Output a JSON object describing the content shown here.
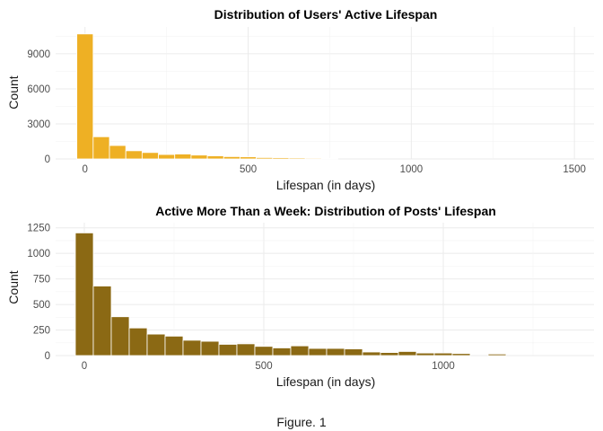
{
  "chart_data": [
    {
      "type": "bar",
      "title": "Distribution of Users' Active Lifespan",
      "xlabel": "Lifespan (in days)",
      "ylabel": "Count",
      "bin_width_days": 50,
      "bin_centers": [
        0,
        50,
        100,
        150,
        200,
        250,
        300,
        350,
        400,
        450,
        500,
        550,
        600,
        650,
        700,
        750
      ],
      "values": [
        10700,
        1900,
        1150,
        700,
        550,
        380,
        420,
        330,
        260,
        200,
        180,
        120,
        110,
        90,
        70,
        60
      ],
      "xlim": [
        -90,
        1560
      ],
      "ylim": [
        0,
        11300
      ],
      "x_ticks": [
        "0",
        "500",
        "1000",
        "1500"
      ],
      "y_ticks": [
        "0",
        "3000",
        "6000",
        "9000"
      ],
      "x_tick_values": [
        0,
        500,
        1000,
        1500
      ],
      "y_tick_values": [
        0,
        3000,
        6000,
        9000
      ],
      "color": "#EEB024",
      "grid": true
    },
    {
      "type": "bar",
      "title": "Active More Than a Week: Distribution of Posts' Lifespan",
      "xlabel": "Lifespan (in days)",
      "ylabel": "Count",
      "bin_width_days": 50,
      "bin_centers": [
        0,
        50,
        100,
        150,
        200,
        250,
        300,
        350,
        400,
        450,
        500,
        550,
        600,
        650,
        700,
        750,
        800,
        850,
        900,
        950,
        1000,
        1050,
        1100,
        1150,
        1200
      ],
      "values": [
        1200,
        680,
        380,
        270,
        210,
        190,
        150,
        140,
        110,
        115,
        90,
        75,
        95,
        70,
        70,
        65,
        35,
        30,
        40,
        25,
        25,
        20,
        0,
        15,
        0
      ],
      "extra_bins": [
        {
          "x": 1100,
          "value": 15
        },
        {
          "x": 1200,
          "value": 12
        }
      ],
      "xlim": [
        -80,
        1420
      ],
      "ylim": [
        0,
        1300
      ],
      "x_ticks": [
        "0",
        "500",
        "1000"
      ],
      "y_ticks": [
        "0",
        "250",
        "500",
        "750",
        "1000",
        "1250"
      ],
      "x_tick_values": [
        0,
        500,
        1000
      ],
      "y_tick_values": [
        0,
        250,
        500,
        750,
        1000,
        1250
      ],
      "color": "#8B6914",
      "grid": true
    }
  ],
  "caption": "Figure. 1"
}
